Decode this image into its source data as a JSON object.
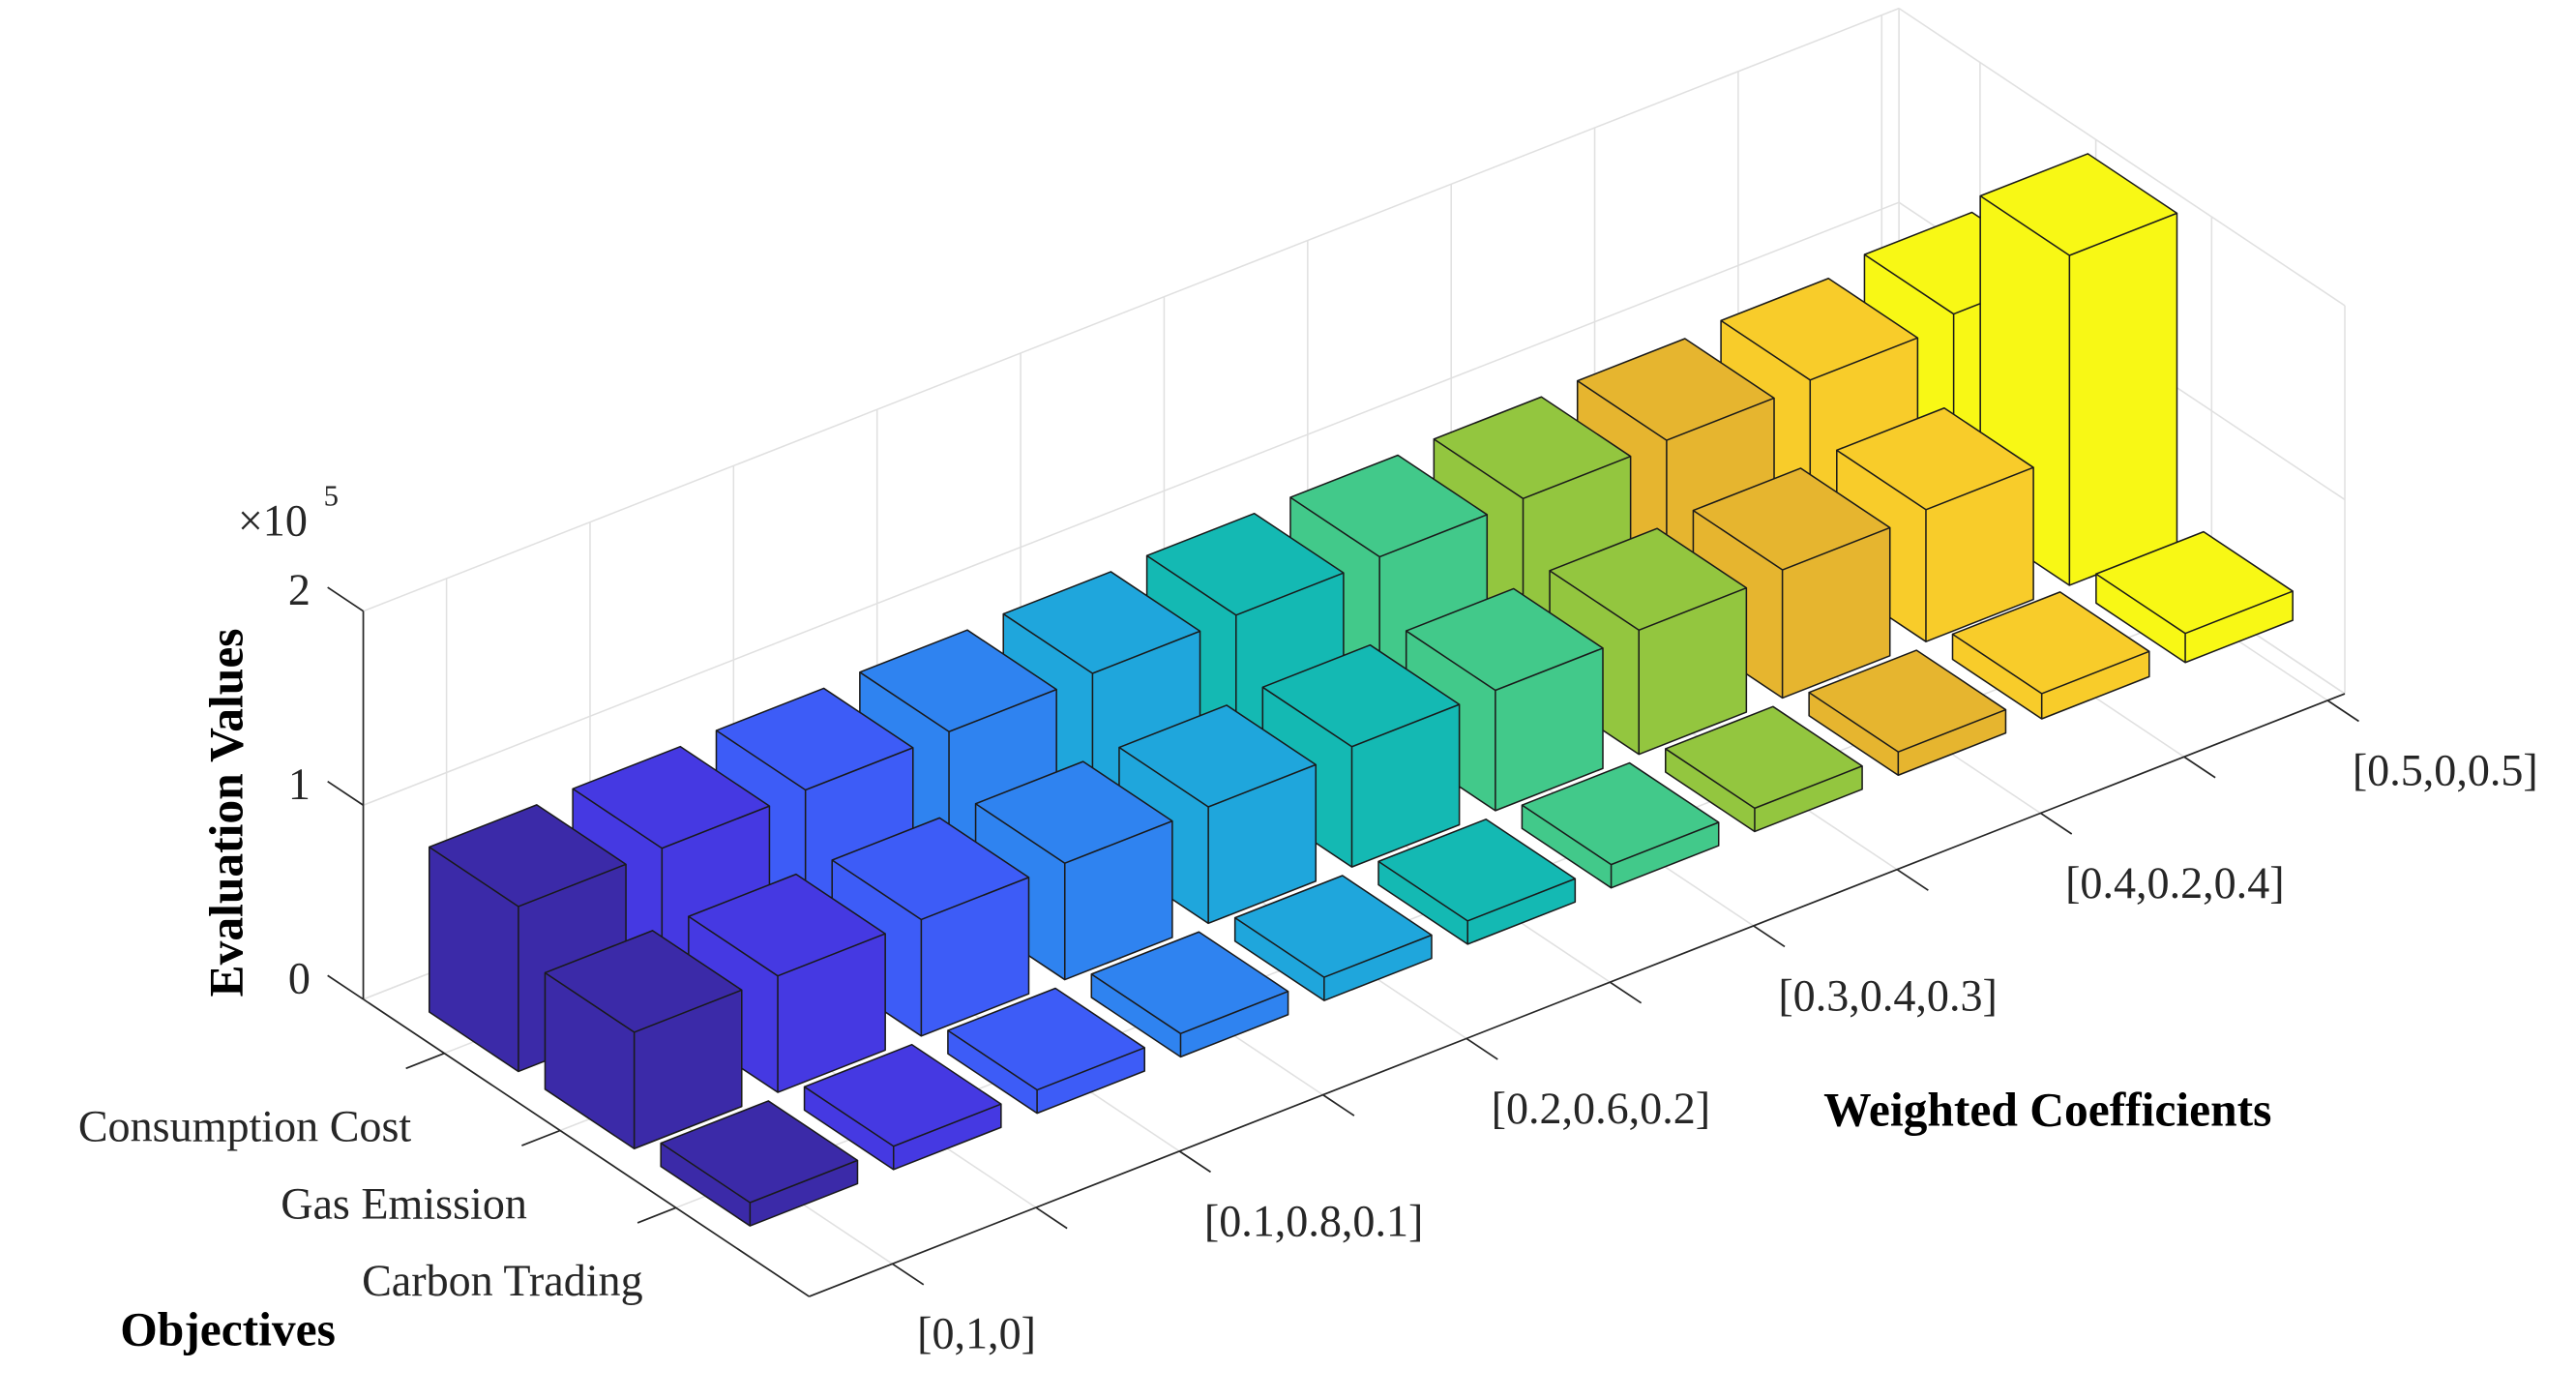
{
  "chart_data": {
    "type": "bar3",
    "x_label": "Weighted Coefficients",
    "y_label": "Objectives",
    "z_label": "Evaluation Values",
    "z_multiplier": "×10",
    "z_exponent": 5,
    "categories": [
      "[0,1,0]",
      null,
      "[0.1,0.8,0.1]",
      null,
      "[0.2,0.6,0.2]",
      null,
      "[0.3,0.4,0.3]",
      null,
      "[0.4,0.2,0.4]",
      null,
      "[0.5,0,0.5]"
    ],
    "series": [
      {
        "name": "Consumption Cost",
        "values": [
          0.85,
          0.86,
          0.87,
          0.88,
          0.89,
          0.9,
          0.91,
          0.92,
          0.93,
          0.95,
          1.0
        ]
      },
      {
        "name": "Gas Emission",
        "values": [
          0.6,
          0.6,
          0.6,
          0.6,
          0.6,
          0.62,
          0.62,
          0.64,
          0.66,
          0.68,
          1.7
        ]
      },
      {
        "name": "Carbon Trading",
        "values": [
          0.12,
          0.12,
          0.12,
          0.12,
          0.12,
          0.12,
          0.12,
          0.12,
          0.12,
          0.13,
          0.15
        ]
      }
    ],
    "colors": [
      "#3b2aa8",
      "#4539e2",
      "#3d5cf7",
      "#2f83f0",
      "#1fa6dc",
      "#14b9b3",
      "#42c98a",
      "#93c63f",
      "#e6b52f",
      "#f8cc2a",
      "#f8f815"
    ],
    "zlim": [
      0,
      2
    ],
    "zticks": [
      0,
      1,
      2
    ],
    "grid": true
  }
}
